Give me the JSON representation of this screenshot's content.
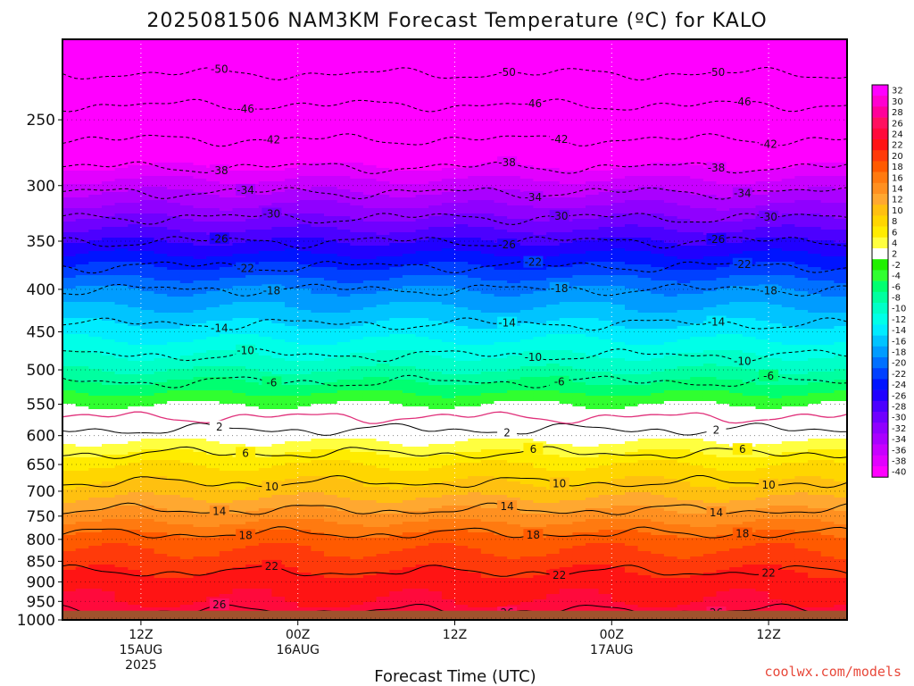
{
  "title": "2025081506 NAM3KM Forecast Temperature (ºC) for KALO",
  "xlabel": "Forecast Time (UTC)",
  "credit": "coolwx.com/models",
  "colors": {
    "credit": "#e8483a",
    "ground": "#a0522d",
    "freezing_line": "#e0307a"
  },
  "chart_data": {
    "type": "heatmap",
    "variable": "Temperature (ºC)",
    "y_ticks": [
      250,
      300,
      350,
      400,
      450,
      500,
      550,
      600,
      650,
      700,
      750,
      800,
      850,
      900,
      950,
      1000
    ],
    "ylim": [
      1000,
      200
    ],
    "y_scale": "log-pressure",
    "x_ticks": [
      {
        "hour": "12Z",
        "date": "15AUG",
        "year": "2025"
      },
      {
        "hour": "00Z",
        "date": "16AUG",
        "year": ""
      },
      {
        "hour": "12Z",
        "date": "",
        "year": ""
      },
      {
        "hour": "00Z",
        "date": "17AUG",
        "year": ""
      },
      {
        "hour": "12Z",
        "date": "",
        "year": ""
      }
    ],
    "xlim_hours": [
      0,
      60
    ],
    "x_tick_hours": [
      6,
      18,
      30,
      42,
      54
    ],
    "grid": true,
    "profile": [
      {
        "p": 200,
        "t": -54
      },
      {
        "p": 240,
        "t": -46
      },
      {
        "p": 270,
        "t": -41
      },
      {
        "p": 300,
        "t": -35
      },
      {
        "p": 350,
        "t": -26
      },
      {
        "p": 400,
        "t": -18
      },
      {
        "p": 450,
        "t": -13
      },
      {
        "p": 500,
        "t": -8
      },
      {
        "p": 550,
        "t": -2
      },
      {
        "p": 600,
        "t": 3
      },
      {
        "p": 650,
        "t": 8
      },
      {
        "p": 700,
        "t": 11
      },
      {
        "p": 750,
        "t": 15
      },
      {
        "p": 800,
        "t": 19
      },
      {
        "p": 850,
        "t": 21
      },
      {
        "p": 900,
        "t": 23
      },
      {
        "p": 950,
        "t": 24
      },
      {
        "p": 975,
        "t": 25
      }
    ],
    "surface_pressure": 975,
    "colorbar_levels": [
      "32",
      "30",
      "28",
      "26",
      "24",
      "22",
      "20",
      "18",
      "16",
      "14",
      "12",
      "10",
      "8",
      "6",
      "4",
      "2",
      "-2",
      "-4",
      "-6",
      "-8",
      "-10",
      "-12",
      "-14",
      "-16",
      "-18",
      "-20",
      "-22",
      "-24",
      "-26",
      "-28",
      "-30",
      "-32",
      "-34",
      "-36",
      "-38",
      "-40"
    ],
    "colorbar_colors": [
      "#ff00ff",
      "#ff00d0",
      "#ff009a",
      "#ff1060",
      "#ff0a3c",
      "#ff1414",
      "#ff3a0a",
      "#ff5a00",
      "#ff7a10",
      "#ff9020",
      "#ffa830",
      "#ffc010",
      "#ffd600",
      "#ffec00",
      "#ffff40",
      "#ffffff",
      "#20f000",
      "#30ff30",
      "#00ff70",
      "#00ffa0",
      "#00ffc8",
      "#00ffe8",
      "#00ecff",
      "#00c4ff",
      "#009cff",
      "#0070ff",
      "#0040ff",
      "#0014ff",
      "#2000ff",
      "#4c00ff",
      "#7000ff",
      "#9000ff",
      "#aa00ff",
      "#c800ff",
      "#e200ff",
      "#ff00ff"
    ],
    "contour_labels": [
      "-50",
      "-46",
      "-42",
      "-38",
      "-34",
      "-30",
      "-26",
      "-22",
      "-18",
      "-14",
      "-10",
      "-6",
      "2",
      "6",
      "10",
      "14",
      "18",
      "22",
      "26"
    ]
  }
}
